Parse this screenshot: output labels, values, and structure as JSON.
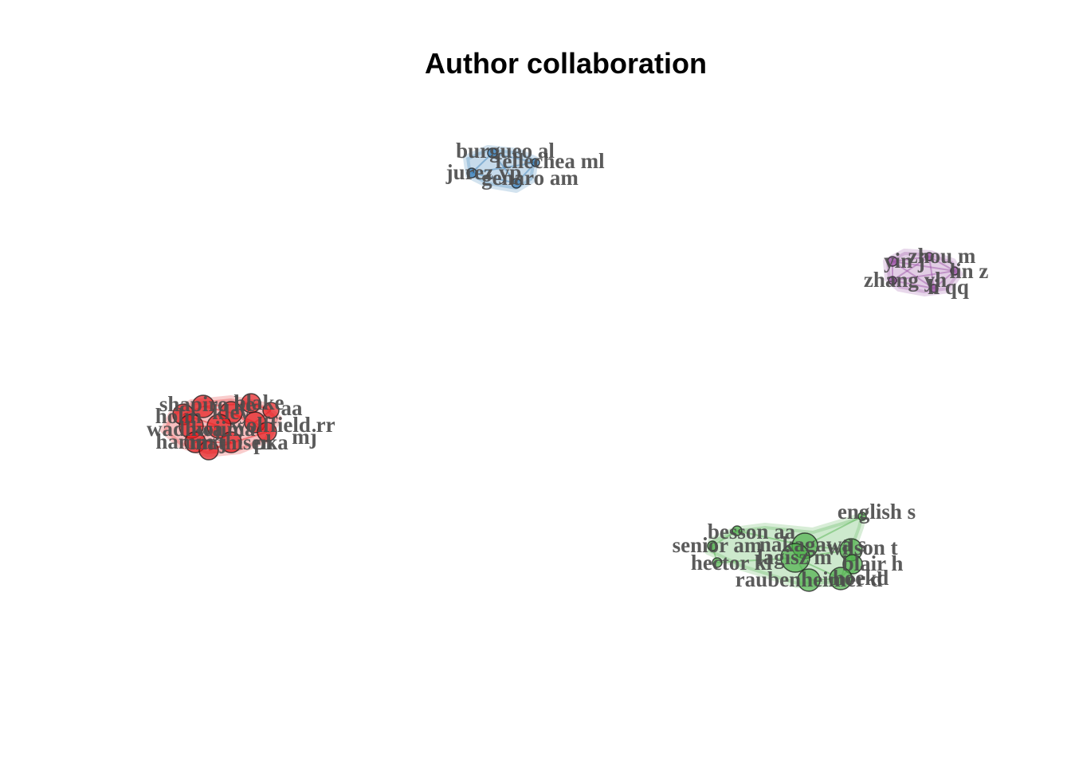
{
  "title": "Author collaboration",
  "clusters": [
    {
      "name": "blue",
      "color": "#377EB8",
      "nodes": [
        "burgueo al",
        "fellechea ml",
        "jurez yp",
        "genaro am"
      ],
      "edges": [
        [
          0,
          1
        ],
        [
          0,
          2
        ],
        [
          0,
          3
        ],
        [
          1,
          2
        ],
        [
          1,
          3
        ],
        [
          2,
          3
        ]
      ]
    },
    {
      "name": "purple",
      "color": "#984EA3",
      "nodes": [
        "yin j",
        "zhou m",
        "lin z",
        "zhang yh",
        "li qq"
      ],
      "edges": [
        [
          0,
          1
        ],
        [
          0,
          2
        ],
        [
          0,
          3
        ],
        [
          0,
          4
        ],
        [
          1,
          2
        ],
        [
          1,
          3
        ],
        [
          1,
          4
        ],
        [
          2,
          3
        ],
        [
          2,
          4
        ],
        [
          3,
          4
        ]
      ]
    },
    {
      "name": "red",
      "color": "#E41A1C",
      "nodes": [
        "shapiro ke",
        "blake",
        "holm",
        "kley",
        "aa",
        "wolffield rr",
        "wadhwa",
        "kojima",
        "mj",
        "hamm j",
        "mathisen",
        "pka"
      ],
      "edges": [
        [
          0,
          1
        ],
        [
          0,
          2
        ],
        [
          0,
          3
        ],
        [
          1,
          4
        ],
        [
          2,
          6
        ],
        [
          3,
          5
        ],
        [
          5,
          8
        ],
        [
          6,
          7
        ],
        [
          7,
          9
        ],
        [
          8,
          11
        ],
        [
          9,
          10
        ],
        [
          10,
          11
        ],
        [
          2,
          7
        ],
        [
          3,
          8
        ],
        [
          4,
          5
        ]
      ]
    },
    {
      "name": "green",
      "color": "#4DAF4A",
      "nodes": [
        "english s",
        "besson aa",
        "senior am",
        "nakagawa s",
        "hector kl",
        "lagisz m",
        "wilson t",
        "blair h",
        "raubenheimer d",
        "hoekd"
      ],
      "edges": [
        [
          0,
          3
        ],
        [
          1,
          2
        ],
        [
          1,
          3
        ],
        [
          2,
          4
        ],
        [
          3,
          5
        ],
        [
          3,
          6
        ],
        [
          4,
          5
        ],
        [
          5,
          6
        ],
        [
          5,
          8
        ],
        [
          6,
          7
        ],
        [
          7,
          9
        ],
        [
          8,
          9
        ],
        [
          5,
          9
        ],
        [
          6,
          9
        ]
      ]
    }
  ]
}
